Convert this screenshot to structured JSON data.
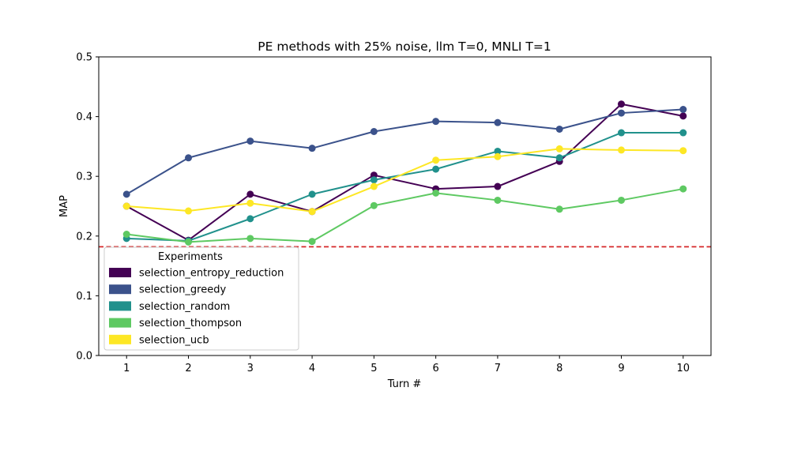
{
  "chart_data": {
    "type": "line",
    "title": "PE methods with 25% noise, llm T=0, MNLI T=1",
    "xlabel": "Turn #",
    "ylabel": "MAP",
    "x": [
      1,
      2,
      3,
      4,
      5,
      6,
      7,
      8,
      9,
      10
    ],
    "xlim": [
      0.55,
      10.45
    ],
    "ylim": [
      0.0,
      0.5
    ],
    "yticks": [
      "0.0",
      "0.1",
      "0.2",
      "0.3",
      "0.4",
      "0.5"
    ],
    "xticks": [
      "1",
      "2",
      "3",
      "4",
      "5",
      "6",
      "7",
      "8",
      "9",
      "10"
    ],
    "grid": false,
    "legend": {
      "title": "Experiments",
      "placement": "lower-left"
    },
    "baseline": {
      "value": 0.182,
      "color": "#d62728",
      "style": "dashed"
    },
    "series": [
      {
        "name": "selection_entropy_reduction",
        "color": "#440154",
        "values": [
          0.25,
          0.193,
          0.27,
          0.241,
          0.302,
          0.279,
          0.283,
          0.325,
          0.421,
          0.401
        ]
      },
      {
        "name": "selection_greedy",
        "color": "#3b528b",
        "values": [
          0.27,
          0.331,
          0.359,
          0.347,
          0.375,
          0.392,
          0.39,
          0.379,
          0.406,
          0.412
        ]
      },
      {
        "name": "selection_random",
        "color": "#21918c",
        "values": [
          0.196,
          0.192,
          0.229,
          0.27,
          0.294,
          0.312,
          0.342,
          0.331,
          0.373,
          0.373
        ]
      },
      {
        "name": "selection_thompson",
        "color": "#5ec962",
        "values": [
          0.203,
          0.19,
          0.196,
          0.191,
          0.251,
          0.272,
          0.26,
          0.245,
          0.26,
          0.279
        ]
      },
      {
        "name": "selection_ucb",
        "color": "#fde725",
        "values": [
          0.25,
          0.242,
          0.255,
          0.241,
          0.283,
          0.327,
          0.333,
          0.346,
          0.344,
          0.343
        ]
      }
    ]
  }
}
